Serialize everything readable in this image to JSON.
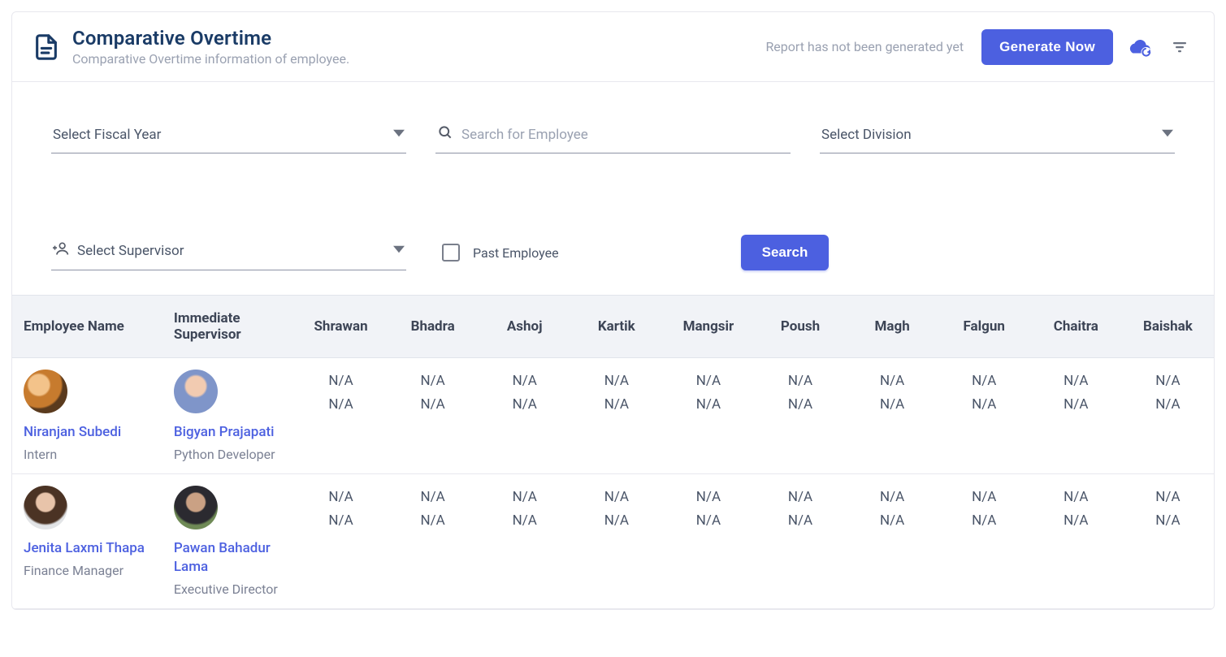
{
  "header": {
    "title": "Comparative Overtime",
    "subtitle": "Comparative Overtime information of employee.",
    "status": "Report has not been generated yet",
    "generate_label": "Generate Now"
  },
  "filters": {
    "fiscal_year_placeholder": "Select Fiscal Year",
    "search_placeholder": "Search for Employee",
    "division_placeholder": "Select Division",
    "supervisor_placeholder": "Select Supervisor",
    "past_employee_label": "Past Employee",
    "search_button": "Search"
  },
  "table": {
    "headers": {
      "employee": "Employee Name",
      "supervisor": "Immediate Supervisor",
      "months": [
        "Shrawan",
        "Bhadra",
        "Ashoj",
        "Kartik",
        "Mangsir",
        "Poush",
        "Magh",
        "Falgun",
        "Chaitra",
        "Baishak"
      ]
    },
    "rows": [
      {
        "employee": {
          "name": "Niranjan Subedi",
          "role": "Intern",
          "avatar_class": "a1"
        },
        "supervisor": {
          "name": "Bigyan Prajapati",
          "role": "Python Developer",
          "avatar_class": "a2"
        },
        "values": [
          [
            "N/A",
            "N/A"
          ],
          [
            "N/A",
            "N/A"
          ],
          [
            "N/A",
            "N/A"
          ],
          [
            "N/A",
            "N/A"
          ],
          [
            "N/A",
            "N/A"
          ],
          [
            "N/A",
            "N/A"
          ],
          [
            "N/A",
            "N/A"
          ],
          [
            "N/A",
            "N/A"
          ],
          [
            "N/A",
            "N/A"
          ],
          [
            "N/A",
            "N/A"
          ]
        ]
      },
      {
        "employee": {
          "name": "Jenita Laxmi Thapa",
          "role": "Finance Manager",
          "avatar_class": "a3"
        },
        "supervisor": {
          "name": "Pawan Bahadur Lama",
          "role": "Executive Director",
          "avatar_class": "a4"
        },
        "values": [
          [
            "N/A",
            "N/A"
          ],
          [
            "N/A",
            "N/A"
          ],
          [
            "N/A",
            "N/A"
          ],
          [
            "N/A",
            "N/A"
          ],
          [
            "N/A",
            "N/A"
          ],
          [
            "N/A",
            "N/A"
          ],
          [
            "N/A",
            "N/A"
          ],
          [
            "N/A",
            "N/A"
          ],
          [
            "N/A",
            "N/A"
          ],
          [
            "N/A",
            "N/A"
          ]
        ]
      }
    ]
  },
  "colors": {
    "primary": "#4c60e0",
    "title": "#1a3b66",
    "muted": "#9aa1b1",
    "border": "#e8e8ee",
    "thead_bg": "#f1f3f7",
    "text": "#4a5568"
  }
}
